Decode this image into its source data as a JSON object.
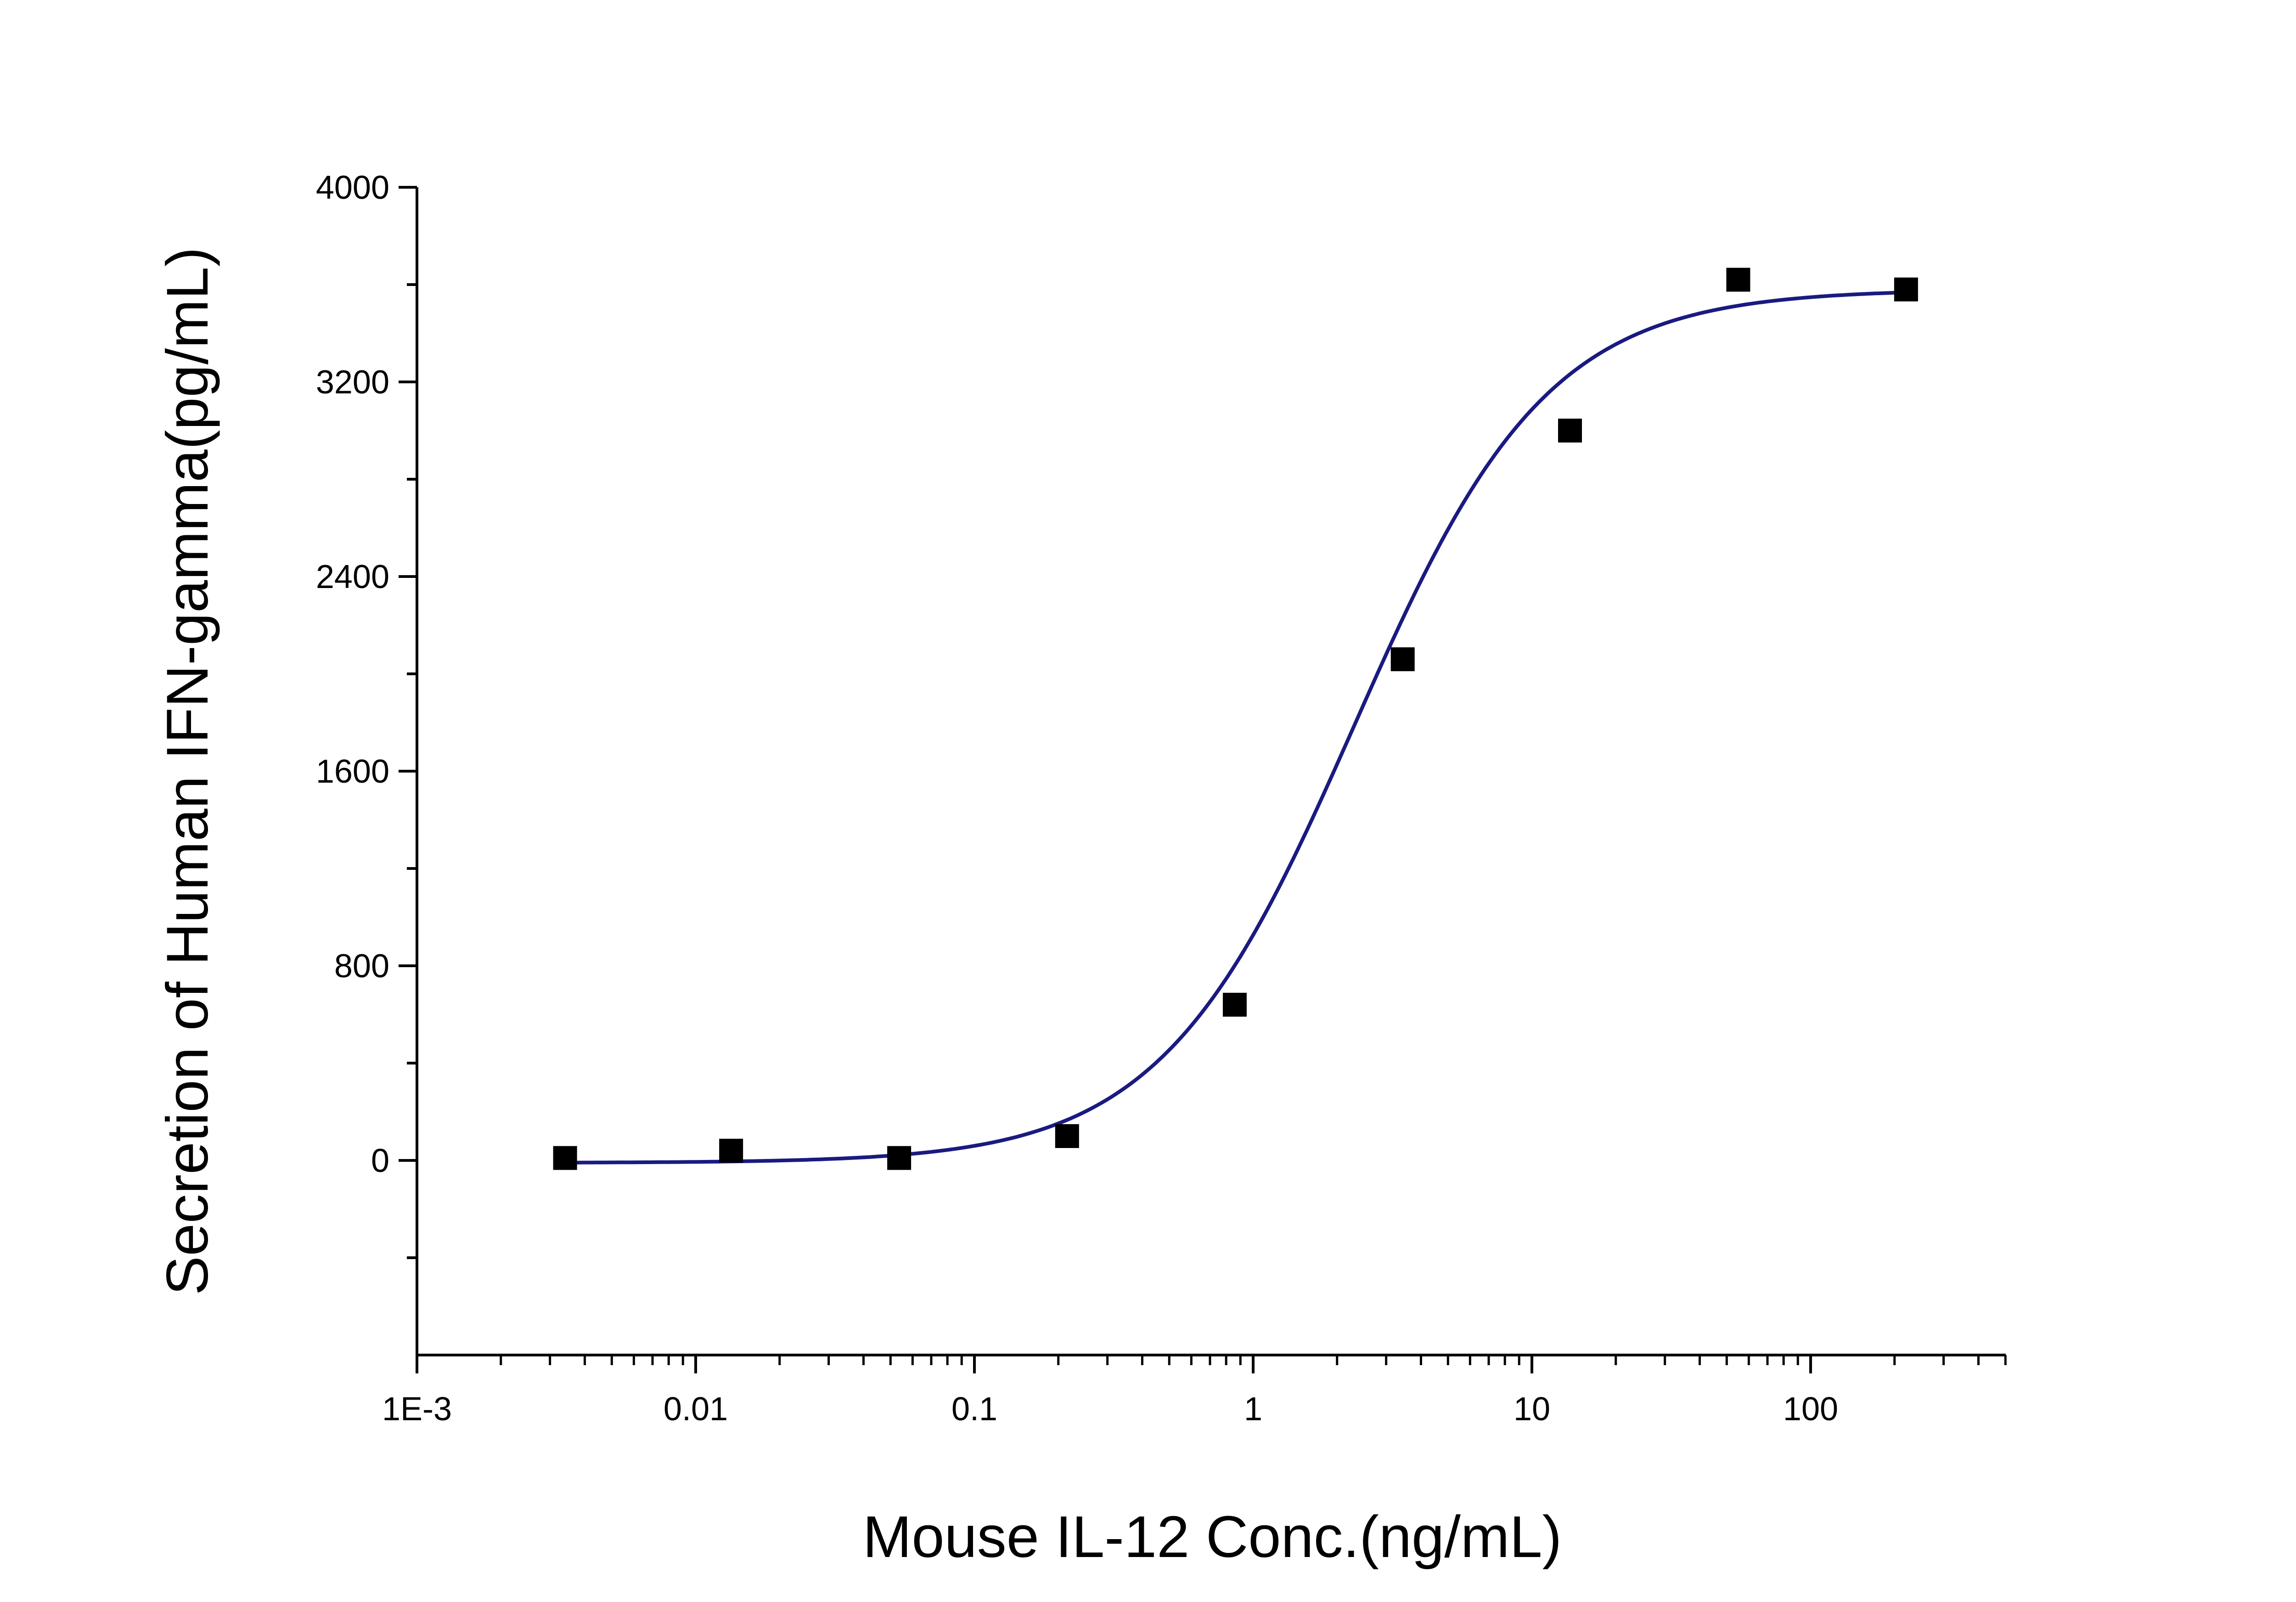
{
  "chart_data": {
    "type": "scatter",
    "title": "",
    "xlabel": "Mouse IL-12 Conc.(ng/mL)",
    "ylabel": "Secretion of Human IFN-gamma(pg/mL)",
    "x_scale": "log",
    "xlim": [
      0.001,
      500
    ],
    "ylim": [
      -800,
      4000
    ],
    "x_ticks": [
      {
        "value": 0.001,
        "label": "1E-3"
      },
      {
        "value": 0.01,
        "label": "0.01"
      },
      {
        "value": 0.1,
        "label": "0.1"
      },
      {
        "value": 1,
        "label": "1"
      },
      {
        "value": 10,
        "label": "10"
      },
      {
        "value": 100,
        "label": "100"
      }
    ],
    "y_ticks": [
      {
        "value": 0,
        "label": "0"
      },
      {
        "value": 800,
        "label": "800"
      },
      {
        "value": 1600,
        "label": "1600"
      },
      {
        "value": 2400,
        "label": "2400"
      },
      {
        "value": 3200,
        "label": "3200"
      },
      {
        "value": 4000,
        "label": "4000"
      }
    ],
    "y_minor_ticks": [
      -400,
      400,
      1200,
      2000,
      2800,
      3600
    ],
    "grid": false,
    "legend": "none",
    "series": [
      {
        "kind": "points",
        "marker": "square",
        "color": "#000000",
        "x": [
          0.0034,
          0.0134,
          0.0537,
          0.215,
          0.859,
          3.44,
          13.7,
          55.0,
          220.0
        ],
        "y": [
          10,
          40,
          10,
          100,
          640,
          2060,
          3000,
          3620,
          3580
        ]
      },
      {
        "kind": "fit-curve",
        "color": "#1a1a80",
        "bottom": -10,
        "top": 3580,
        "ec50": 2.3,
        "hill": 1.25
      }
    ]
  }
}
